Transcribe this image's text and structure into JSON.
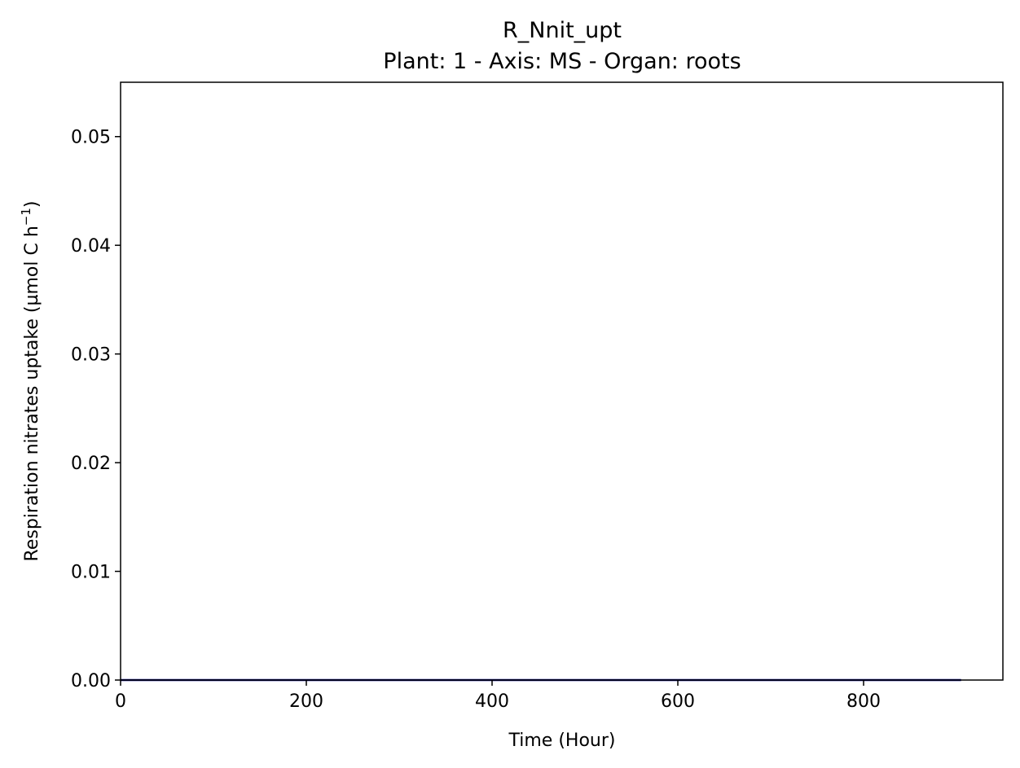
{
  "chart_data": {
    "type": "line",
    "title": "R_Nnit_upt",
    "subtitle": "Plant: 1 - Axis: MS - Organ: roots",
    "xlabel": "Time (Hour)",
    "ylabel_main": "Respiration nitrates uptake (µmol C h",
    "ylabel_sup": "−1",
    "ylabel_close": ")",
    "xlim": [
      0,
      950
    ],
    "ylim": [
      0,
      0.055
    ],
    "x_ticks": [
      0,
      200,
      400,
      600,
      800
    ],
    "x_tick_labels": [
      "0",
      "200",
      "400",
      "600",
      "800"
    ],
    "y_ticks": [
      0,
      0.01,
      0.02,
      0.03,
      0.04,
      0.05
    ],
    "y_tick_labels": [
      "0.00",
      "0.01",
      "0.02",
      "0.03",
      "0.04",
      "0.05"
    ],
    "grid": false,
    "series": [
      {
        "color": "#000080",
        "x": [
          0,
          905
        ],
        "y": [
          0,
          0
        ]
      }
    ]
  }
}
